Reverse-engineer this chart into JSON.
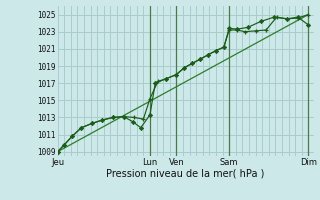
{
  "background_color": "#cce8e8",
  "grid_color": "#aacccc",
  "line_color_dark": "#1a5c1a",
  "line_color_mid": "#2e7d2e",
  "ylabel": "Pression niveau de la mer( hPa )",
  "ylim": [
    1008.5,
    1026.0
  ],
  "yticks": [
    1009,
    1011,
    1013,
    1015,
    1017,
    1019,
    1021,
    1023,
    1025
  ],
  "xtick_labels": [
    "Jeu",
    "",
    "Lun",
    "Ven",
    "",
    "Sam",
    "",
    "Dim"
  ],
  "xtick_positions": [
    0,
    1.75,
    3.5,
    4.5,
    5.5,
    6.5,
    8.0,
    9.5
  ],
  "xlim": [
    0,
    9.7
  ],
  "vlines_x": [
    3.5,
    4.5,
    6.5,
    9.5
  ],
  "series1_x": [
    0.0,
    0.25,
    0.55,
    0.9,
    1.3,
    1.7,
    2.1,
    2.5,
    2.9,
    3.25,
    3.5,
    3.8,
    4.1,
    4.5,
    4.8,
    5.1,
    5.4,
    5.7,
    6.0,
    6.3,
    6.5,
    6.8,
    7.1,
    7.5,
    7.9,
    8.3,
    8.7,
    9.1,
    9.5
  ],
  "series1_y": [
    1009.0,
    1009.8,
    1010.8,
    1011.8,
    1012.3,
    1012.7,
    1013.0,
    1013.1,
    1013.0,
    1012.8,
    1015.2,
    1017.2,
    1017.5,
    1018.0,
    1018.8,
    1019.3,
    1019.8,
    1020.3,
    1020.8,
    1021.2,
    1023.2,
    1023.2,
    1023.0,
    1023.1,
    1023.2,
    1024.7,
    1024.5,
    1024.6,
    1025.0
  ],
  "series2_x": [
    0.0,
    0.25,
    0.55,
    0.9,
    1.3,
    1.7,
    2.1,
    2.5,
    2.85,
    3.15,
    3.5,
    3.7,
    4.1,
    4.5,
    4.8,
    5.1,
    5.4,
    5.7,
    6.0,
    6.3,
    6.5,
    6.8,
    7.2,
    7.7,
    8.2,
    8.7,
    9.1,
    9.5
  ],
  "series2_y": [
    1009.0,
    1009.8,
    1010.8,
    1011.8,
    1012.3,
    1012.7,
    1013.0,
    1013.1,
    1012.5,
    1011.8,
    1013.3,
    1017.0,
    1017.5,
    1018.0,
    1018.8,
    1019.3,
    1019.8,
    1020.3,
    1020.8,
    1021.2,
    1023.4,
    1023.3,
    1023.5,
    1024.2,
    1024.7,
    1024.5,
    1024.7,
    1023.8
  ],
  "series3_x": [
    0.0,
    9.5
  ],
  "series3_y": [
    1009.0,
    1025.0
  ],
  "ytick_fontsize": 5.5,
  "xtick_fontsize": 6.0,
  "xlabel_fontsize": 7.0
}
